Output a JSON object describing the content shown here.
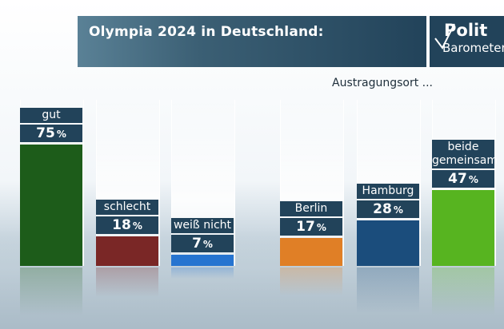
{
  "header": {
    "title": "Olympia 2024 in Deutschland:",
    "logo_line1": "Polit",
    "logo_line2": "Barometer"
  },
  "subtitle": "Austragungsort ...",
  "chart_data": [
    {
      "type": "bar",
      "title": "Olympia 2024 in Deutschland:",
      "ylim": [
        0,
        100
      ],
      "unit": "%",
      "categories": [
        "gut",
        "schlecht",
        "weiß nicht"
      ],
      "values": [
        75,
        18,
        7
      ],
      "colors": [
        "#1d5c1a",
        "#7a2726",
        "#2674d0"
      ]
    },
    {
      "type": "bar",
      "title": "Austragungsort ...",
      "ylim": [
        0,
        100
      ],
      "unit": "%",
      "categories": [
        "Berlin",
        "Hamburg",
        "beide gemeinsam"
      ],
      "values": [
        17,
        28,
        47
      ],
      "colors": [
        "#e07f26",
        "#1b4d7c",
        "#57b420"
      ]
    }
  ]
}
